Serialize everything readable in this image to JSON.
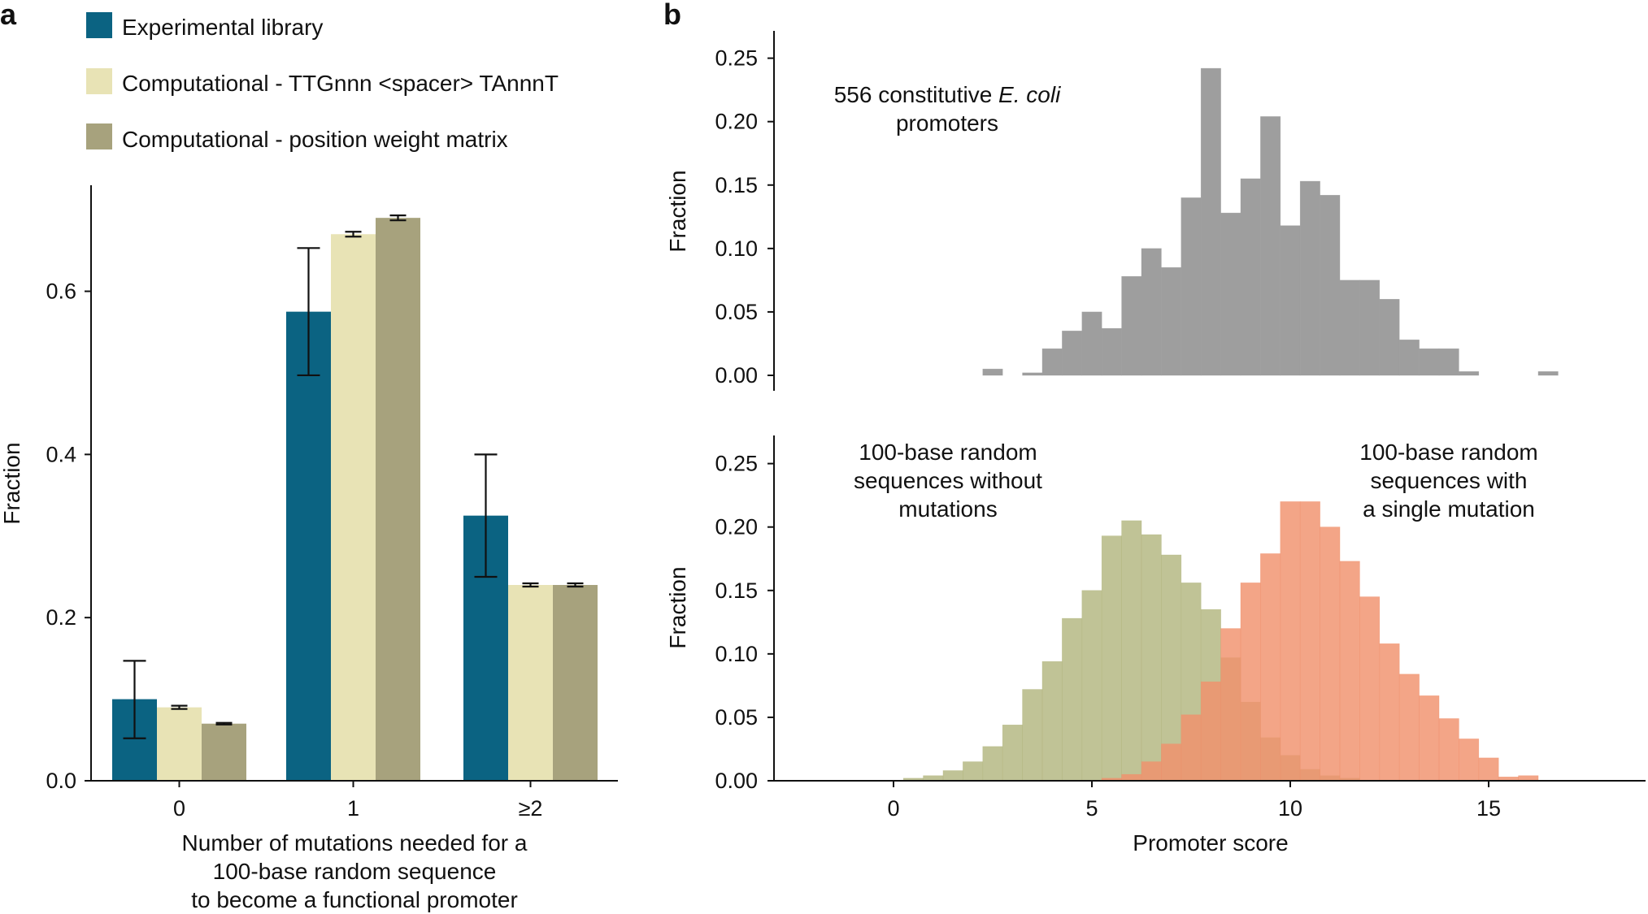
{
  "panels": {
    "a": {
      "label": "a",
      "legend": [
        {
          "label": "Experimental library",
          "color": "#0b6382"
        },
        {
          "label": "Computational - TTGnnn <spacer> TAnnnT",
          "color": "#e8e3b5"
        },
        {
          "label": "Computational - position weight matrix",
          "color": "#a7a27d"
        }
      ]
    },
    "b": {
      "label": "b",
      "top_annotation": {
        "prefix": "556 constitutive ",
        "italic": "E. coli",
        "line2": "promoters"
      },
      "bottom_annotation_left": [
        "100-base random",
        "sequences without",
        "mutations"
      ],
      "bottom_annotation_right": [
        "100-base random",
        "sequences with",
        "a single mutation"
      ]
    }
  },
  "chart_data": [
    {
      "id": "panel-a",
      "type": "bar",
      "title": "",
      "xlabel": [
        "Number of mutations needed for a",
        "100-base random sequence",
        "to become a functional promoter"
      ],
      "ylabel": "Fraction",
      "ylim": [
        0,
        0.73
      ],
      "yticks": [
        "0.0",
        "0.2",
        "0.4",
        "0.6"
      ],
      "categories": [
        "0",
        "1",
        "≥2"
      ],
      "series": [
        {
          "name": "Experimental library",
          "color": "#0b6382",
          "values": [
            0.1,
            0.575,
            0.325
          ],
          "err_low": [
            0.052,
            0.497,
            0.25
          ],
          "err_high": [
            0.147,
            0.653,
            0.4
          ]
        },
        {
          "name": "Computational - TTGnnn <spacer> TAnnnT",
          "color": "#e8e3b5",
          "values": [
            0.09,
            0.67,
            0.24
          ],
          "err_low": [
            0.088,
            0.667,
            0.238
          ],
          "err_high": [
            0.092,
            0.673,
            0.242
          ]
        },
        {
          "name": "Computational - position weight matrix",
          "color": "#a7a27d",
          "values": [
            0.07,
            0.69,
            0.24
          ],
          "err_low": [
            0.069,
            0.687,
            0.238
          ],
          "err_high": [
            0.071,
            0.693,
            0.242
          ]
        }
      ]
    },
    {
      "id": "panel-b-top",
      "type": "bar",
      "histogram": true,
      "ylabel": "Fraction",
      "xlim": [
        -3.1,
        18.5
      ],
      "ylim": [
        0,
        0.26
      ],
      "yticks": [
        "0.00",
        "0.05",
        "0.10",
        "0.15",
        "0.20",
        "0.25"
      ],
      "bin_width": 0.5,
      "series": [
        {
          "name": "556 constitutive E. coli promoters",
          "color": "#9e9e9e",
          "bin_starts": [
            2.25,
            3.25,
            3.75,
            4.25,
            4.75,
            5.25,
            5.75,
            6.25,
            6.75,
            7.25,
            7.75,
            8.25,
            8.75,
            9.25,
            9.75,
            10.25,
            10.75,
            11.25,
            11.75,
            12.25,
            12.75,
            13.25,
            13.75,
            14.25,
            16.25
          ],
          "values": [
            0.005,
            0.002,
            0.021,
            0.035,
            0.05,
            0.037,
            0.078,
            0.1,
            0.085,
            0.14,
            0.242,
            0.128,
            0.155,
            0.204,
            0.118,
            0.153,
            0.142,
            0.075,
            0.075,
            0.06,
            0.028,
            0.021,
            0.021,
            0.003,
            0.003
          ]
        }
      ]
    },
    {
      "id": "panel-b-bottom",
      "type": "bar",
      "histogram": true,
      "xlabel": "Promoter score",
      "ylabel": "Fraction",
      "xlim": [
        -3.1,
        18.5
      ],
      "xticks": [
        "0",
        "5",
        "10",
        "15"
      ],
      "ylim": [
        0,
        0.26
      ],
      "yticks": [
        "0.00",
        "0.05",
        "0.10",
        "0.15",
        "0.20",
        "0.25"
      ],
      "bin_width": 0.5,
      "series": [
        {
          "name": "100-base random sequences without mutations",
          "color": "#b2b67f",
          "bin_starts": [
            0.25,
            0.75,
            1.25,
            1.75,
            2.25,
            2.75,
            3.25,
            3.75,
            4.25,
            4.75,
            5.25,
            5.75,
            6.25,
            6.75,
            7.25,
            7.75,
            8.25,
            8.75,
            9.25,
            9.75,
            10.25,
            10.75,
            11.25
          ],
          "values": [
            0.002,
            0.004,
            0.008,
            0.015,
            0.027,
            0.044,
            0.072,
            0.094,
            0.128,
            0.15,
            0.193,
            0.205,
            0.194,
            0.178,
            0.156,
            0.135,
            0.097,
            0.062,
            0.034,
            0.02,
            0.009,
            0.004,
            0.002
          ]
        },
        {
          "name": "100-base random sequences with a single mutation",
          "color": "#f0916c",
          "bin_starts": [
            5.25,
            5.75,
            6.25,
            6.75,
            7.25,
            7.75,
            8.25,
            8.75,
            9.25,
            9.75,
            10.25,
            10.75,
            11.25,
            11.75,
            12.25,
            12.75,
            13.25,
            13.75,
            14.25,
            14.75,
            15.25,
            15.75
          ],
          "values": [
            0.002,
            0.005,
            0.015,
            0.029,
            0.052,
            0.078,
            0.12,
            0.156,
            0.179,
            0.22,
            0.22,
            0.2,
            0.173,
            0.145,
            0.108,
            0.084,
            0.067,
            0.049,
            0.033,
            0.018,
            0.003,
            0.004
          ]
        }
      ]
    }
  ]
}
